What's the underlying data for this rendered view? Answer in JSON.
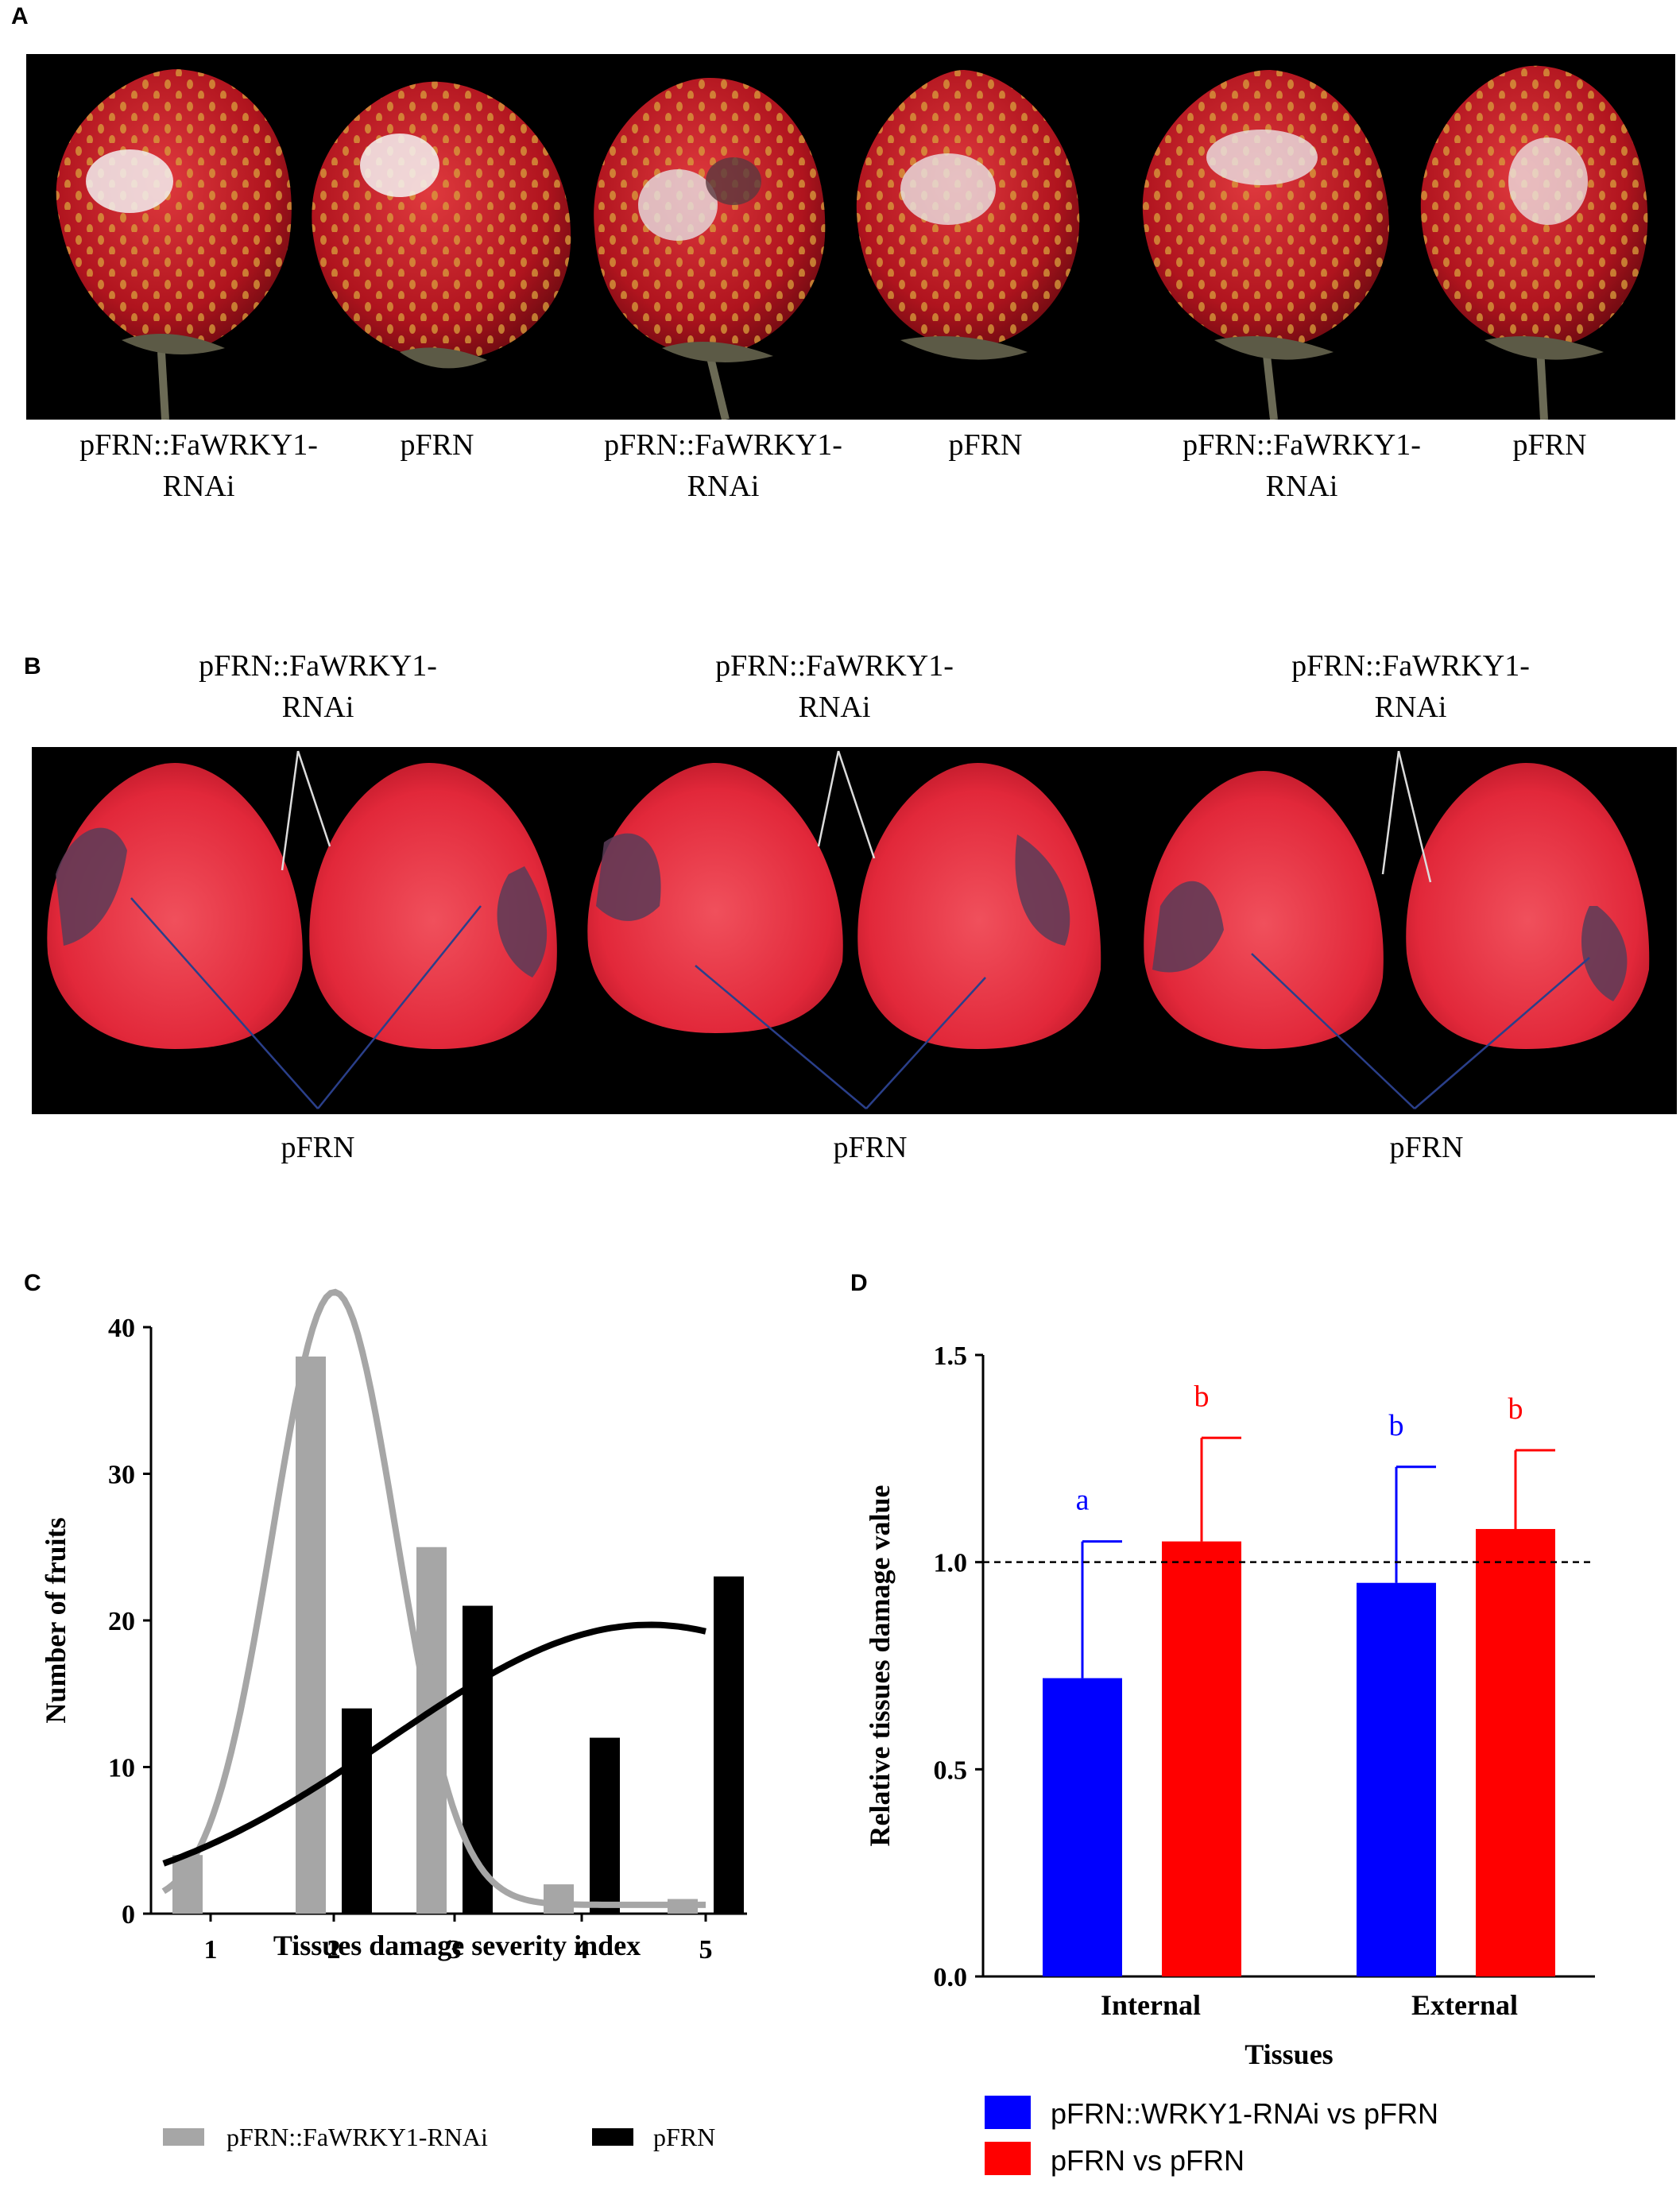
{
  "panel_a": {
    "letter": "A",
    "labels": [
      "pFRN::FaWRKY1-\nRNAi",
      "pFRN",
      "pFRN::FaWRKY1-\nRNAi",
      "pFRN",
      "pFRN::FaWRKY1-\nRNAi",
      "pFRN"
    ]
  },
  "panel_b": {
    "letter": "B",
    "top_labels": [
      "pFRN::FaWRKY1-\nRNAi",
      "pFRN::FaWRKY1-\nRNAi",
      "pFRN::FaWRKY1-\nRNAi"
    ],
    "bottom_labels": [
      "pFRN",
      "pFRN",
      "pFRN"
    ]
  },
  "colors": {
    "gray_series": "#a6a6a6",
    "black_series": "#000000",
    "blue_series": "#0000ff",
    "red_series": "#ff0000",
    "strawberry_red": "#c8202a",
    "flesh_red": "#e8303c"
  },
  "chart_data": [
    {
      "panel": "C",
      "type": "bar",
      "xlabel": "Tissues damage severity index",
      "ylabel": "Number of fruits",
      "categories": [
        "1",
        "2",
        "3",
        "4",
        "5"
      ],
      "ylim": [
        0,
        40
      ],
      "yticks": [
        "0",
        "10",
        "20",
        "30",
        "40"
      ],
      "series": [
        {
          "name": "pFRN::FaWRKY1-RNAi",
          "values": [
            4,
            38,
            25,
            2,
            1
          ],
          "fit_curve": "gaussian"
        },
        {
          "name": "pFRN",
          "values": [
            0,
            14,
            21,
            12,
            23
          ],
          "fit_curve": "gaussian"
        }
      ],
      "legend": [
        "pFRN::FaWRKY1-RNAi",
        "pFRN"
      ]
    },
    {
      "panel": "D",
      "type": "bar",
      "xlabel": "Tissues",
      "ylabel": "Relative tissues damage value",
      "categories": [
        "Internal",
        "External"
      ],
      "ylim": [
        0,
        1.5
      ],
      "yticks": [
        "0.0",
        "0.5",
        "1.0",
        "1.5"
      ],
      "reference_line": 1.0,
      "series": [
        {
          "name": "pFRN::WRKY1-RNAi vs pFRN",
          "values": [
            0.72,
            0.95
          ],
          "errors": [
            0.33,
            0.28
          ],
          "letters": [
            "a",
            "b"
          ]
        },
        {
          "name": "pFRN vs pFRN",
          "values": [
            1.05,
            1.08
          ],
          "errors": [
            0.25,
            0.19
          ],
          "letters": [
            "b",
            "b"
          ]
        }
      ],
      "legend": [
        "pFRN::WRKY1-RNAi vs pFRN",
        "pFRN vs pFRN"
      ]
    }
  ]
}
